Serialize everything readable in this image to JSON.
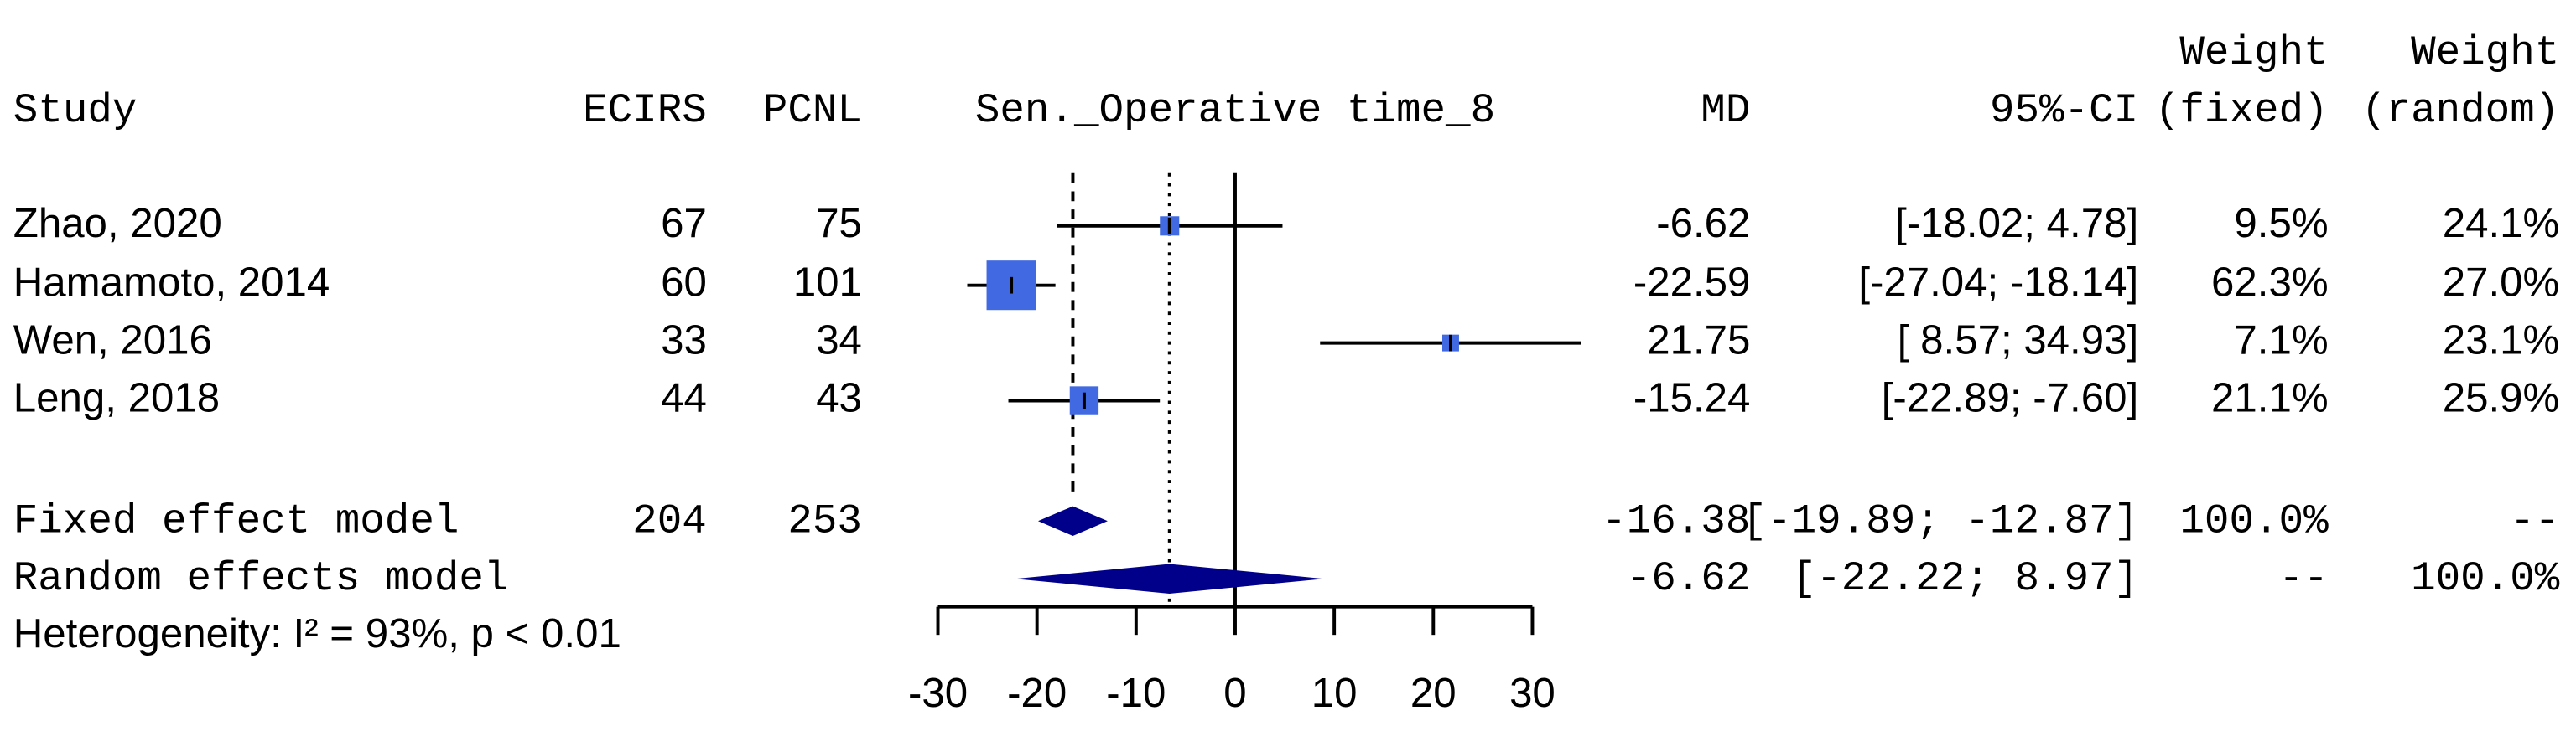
{
  "chart_data": {
    "type": "forest",
    "headers": {
      "study": "Study",
      "ecirs": "ECIRS",
      "pcnl": "PCNL",
      "plot": "Sen._Operative time_8",
      "md": "MD",
      "ci": "95%-CI",
      "weight_fixed": [
        "Weight",
        "(fixed)"
      ],
      "weight_random": [
        "Weight",
        "(random)"
      ]
    },
    "studies": [
      "Zhao, 2020",
      "Hamamoto, 2014",
      "Wen, 2016",
      "Leng, 2018"
    ],
    "ecirs": [
      67,
      60,
      33,
      44
    ],
    "pcnl": [
      75,
      101,
      34,
      43
    ],
    "md": [
      -6.62,
      -22.59,
      21.75,
      -15.24
    ],
    "ci_lower": [
      -18.02,
      -27.04,
      8.57,
      -22.89
    ],
    "ci_upper": [
      4.78,
      -18.14,
      34.93,
      -7.6
    ],
    "ci_labels": [
      "[-18.02; 4.78]",
      "[-27.04; -18.14]",
      "[ 8.57; 34.93]",
      "[-22.89; -7.60]"
    ],
    "weight_fixed": [
      9.5,
      62.3,
      7.1,
      21.1
    ],
    "weight_fixed_labels": [
      "9.5%",
      "62.3%",
      "7.1%",
      "21.1%"
    ],
    "weight_random": [
      24.1,
      27.0,
      23.1,
      25.9
    ],
    "weight_random_labels": [
      "24.1%",
      "27.0%",
      "23.1%",
      "25.9%"
    ],
    "models": [
      {
        "name": "Fixed effect model",
        "ecirs": 204,
        "pcnl": 253,
        "md": -16.38,
        "ci_lower": -19.89,
        "ci_upper": -12.87,
        "ci_label": "[-19.89; -12.87]",
        "weight_fixed": {
          "value": 100,
          "label": "100.0%"
        },
        "weight_random": "--"
      },
      {
        "name": "Random effects model",
        "md": -6.62,
        "ci_lower": -22.22,
        "ci_upper": 8.97,
        "ci_label": "[-22.22; 8.97]",
        "weight_fixed": "--",
        "weight_random": {
          "value": 100,
          "label": "100.0%"
        }
      }
    ],
    "heterogeneity": "Heterogeneity: I² = 93%, p < 0.01",
    "xlim": [
      -30,
      30
    ],
    "xticks": [
      -30,
      -20,
      -10,
      0,
      10,
      20,
      30
    ],
    "square_color": "#4169e1",
    "diamond_color": "#00008b"
  }
}
